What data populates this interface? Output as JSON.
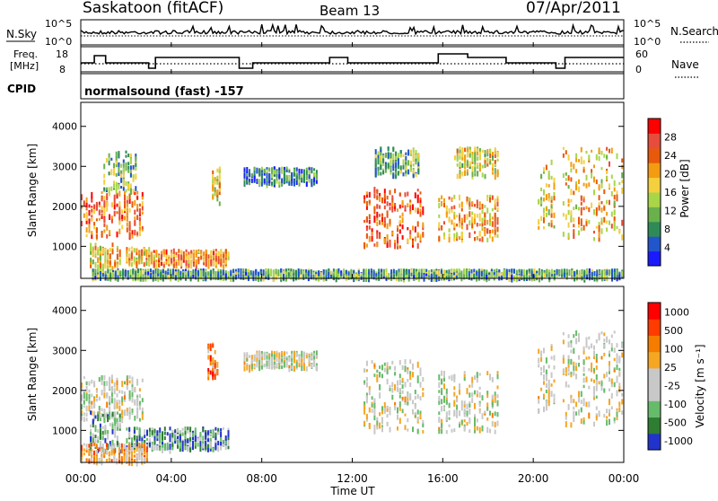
{
  "header": {
    "station": "Saskatoon (fitACF)",
    "beam": "Beam 13",
    "date": "07/Apr/2011"
  },
  "panels": {
    "nsky": {
      "label": "N.Sky",
      "right_label": "N.Search",
      "ticks": [
        "10^5",
        "10^0"
      ],
      "right_ticks": [
        "10^5",
        "10^0"
      ]
    },
    "freq": {
      "label_line1": "Freq.",
      "label_line2": "[MHz]",
      "ticks": [
        "18",
        "8"
      ],
      "right_ticks": [
        "60",
        "0"
      ],
      "right_label": "Nave"
    },
    "cpid": {
      "label": "CPID",
      "value": "normalsound (fast) -157"
    }
  },
  "colors": {
    "power_scale": [
      "#1a1aff",
      "#2255cc",
      "#2e8b57",
      "#6ab04c",
      "#a8d648",
      "#f4d03f",
      "#f39c12",
      "#e8590c",
      "#e74c3c",
      "#ff0000"
    ],
    "velocity_scale": [
      "#2233cc",
      "#2e7d32",
      "#66bb6a",
      "#c8c8c8",
      "#c8c8c8",
      "#f5a623",
      "#f57c00",
      "#ff3b00",
      "#ff0000"
    ]
  },
  "chart_data": [
    {
      "type": "heatmap",
      "title": "",
      "xlabel": "",
      "ylabel": "Slant Range [km]",
      "yticks": [
        "1000",
        "2000",
        "3000",
        "4000"
      ],
      "ylim": [
        200,
        4600
      ],
      "colorbar": {
        "label": "Power [dB]",
        "ticks": [
          "4",
          "8",
          "12",
          "16",
          "20",
          "24",
          "28"
        ]
      },
      "regions": [
        {
          "t": [
            0.0,
            2.8
          ],
          "r": [
            1300,
            2400
          ],
          "level": 0.75
        },
        {
          "t": [
            0.4,
            1.8
          ],
          "r": [
            500,
            1100
          ],
          "level": 0.55
        },
        {
          "t": [
            1.0,
            2.5
          ],
          "r": [
            2400,
            3400
          ],
          "level": 0.35
        },
        {
          "t": [
            2.0,
            3.2
          ],
          "r": [
            600,
            1000
          ],
          "level": 0.6
        },
        {
          "t": [
            3.2,
            6.6
          ],
          "r": [
            550,
            950
          ],
          "level": 0.7
        },
        {
          "t": [
            5.8,
            6.2
          ],
          "r": [
            2100,
            3000
          ],
          "level": 0.55
        },
        {
          "t": [
            7.2,
            10.5
          ],
          "r": [
            2600,
            3000
          ],
          "level": 0.25
        },
        {
          "t": [
            12.5,
            15.2
          ],
          "r": [
            1000,
            2500
          ],
          "level": 0.8
        },
        {
          "t": [
            13.0,
            15.0
          ],
          "r": [
            2800,
            3500
          ],
          "level": 0.35
        },
        {
          "t": [
            15.8,
            18.5
          ],
          "r": [
            1200,
            2300
          ],
          "level": 0.65
        },
        {
          "t": [
            16.5,
            18.5
          ],
          "r": [
            2800,
            3500
          ],
          "level": 0.5
        },
        {
          "t": [
            20.2,
            21.0
          ],
          "r": [
            1500,
            3200
          ],
          "level": 0.55
        },
        {
          "t": [
            21.3,
            24.0
          ],
          "r": [
            1200,
            3500
          ],
          "level": 0.6
        },
        {
          "t": [
            0.5,
            24.0
          ],
          "r": [
            250,
            450
          ],
          "level": 0.3
        }
      ]
    },
    {
      "type": "heatmap",
      "title": "",
      "xlabel": "Time UT",
      "ylabel": "Slant Range [km]",
      "xticks": [
        "00:00",
        "04:00",
        "08:00",
        "12:00",
        "16:00",
        "20:00",
        "00:00"
      ],
      "yticks": [
        "1000",
        "2000",
        "3000",
        "4000"
      ],
      "ylim": [
        200,
        4600
      ],
      "colorbar": {
        "label": "Velocity [m s⁻¹]",
        "ticks": [
          "1000",
          "500",
          "100",
          "25",
          "-25",
          "-100",
          "-500",
          "-1000"
        ]
      },
      "regions": [
        {
          "t": [
            0.0,
            2.8
          ],
          "r": [
            1300,
            2400
          ],
          "level": 0.45
        },
        {
          "t": [
            0.4,
            1.8
          ],
          "r": [
            500,
            1500
          ],
          "level": 0.3
        },
        {
          "t": [
            2.0,
            6.6
          ],
          "r": [
            550,
            1100
          ],
          "level": 0.2
        },
        {
          "t": [
            5.6,
            6.1
          ],
          "r": [
            2300,
            3200
          ],
          "level": 0.7
        },
        {
          "t": [
            7.2,
            10.5
          ],
          "r": [
            2600,
            3000
          ],
          "level": 0.45
        },
        {
          "t": [
            12.5,
            15.2
          ],
          "r": [
            1000,
            2800
          ],
          "level": 0.45
        },
        {
          "t": [
            15.8,
            18.5
          ],
          "r": [
            1000,
            2500
          ],
          "level": 0.45
        },
        {
          "t": [
            20.2,
            21.0
          ],
          "r": [
            1500,
            3200
          ],
          "level": 0.45
        },
        {
          "t": [
            21.3,
            24.0
          ],
          "r": [
            1200,
            3500
          ],
          "level": 0.45
        },
        {
          "t": [
            0.0,
            3.0
          ],
          "r": [
            250,
            700
          ],
          "level": 0.6
        }
      ]
    }
  ]
}
